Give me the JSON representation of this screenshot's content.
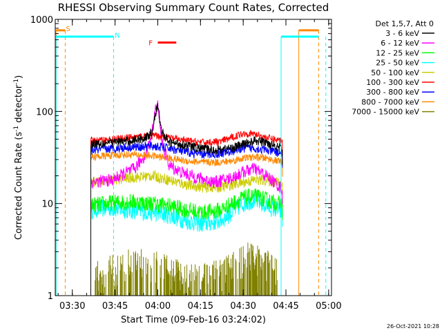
{
  "chart_data": {
    "type": "line",
    "title": "RHESSI Observing Summary Count Rates, Corrected",
    "xlabel": "Start Time (09-Feb-16 03:24:02)",
    "ylabel_parts": [
      "Corrected Count Rate (s",
      "-1",
      " detector",
      "-1",
      ")"
    ],
    "x_unit": "minutes after 03:24:02",
    "x_range": [
      0,
      97
    ],
    "x_ticks": [
      {
        "label": "03:30",
        "value": 6.0
      },
      {
        "label": "03:45",
        "value": 21.0
      },
      {
        "label": "04:00",
        "value": 36.0
      },
      {
        "label": "04:15",
        "value": 51.0
      },
      {
        "label": "04:30",
        "value": 66.0
      },
      {
        "label": "04:45",
        "value": 81.0
      },
      {
        "label": "05:00",
        "value": 96.0
      }
    ],
    "y_scale": "log",
    "y_range": [
      1,
      1000
    ],
    "y_ticks": [
      {
        "label": "1",
        "value": 1
      },
      {
        "label": "10",
        "value": 10
      },
      {
        "label": "100",
        "value": 100
      },
      {
        "label": "1000",
        "value": 1000
      }
    ],
    "legend_header": "Det 1,5,7, Att 0",
    "legend_position": "right",
    "data_start": 12.5,
    "data_end": 79.8,
    "series": [
      {
        "name": "3 - 6 keV",
        "color": "#000000",
        "x": [
          12.5,
          20,
          26,
          32,
          34,
          35,
          36,
          37,
          38,
          40,
          44,
          50,
          56,
          62,
          66,
          70,
          74,
          78,
          79.8
        ],
        "y": [
          45,
          46,
          48,
          52,
          60,
          90,
          115,
          70,
          55,
          46,
          44,
          40,
          38,
          40,
          44,
          48,
          46,
          42,
          38
        ]
      },
      {
        "name": "6 - 12 keV",
        "color": "#ff00ff",
        "x": [
          12.5,
          20,
          24,
          28,
          32,
          34,
          35,
          36,
          37,
          38,
          40,
          44,
          50,
          56,
          62,
          66,
          70,
          74,
          78,
          79.8
        ],
        "y": [
          17,
          18,
          21,
          24,
          35,
          60,
          100,
          118,
          60,
          40,
          26,
          22,
          19,
          17,
          19,
          22,
          24,
          20,
          16,
          14
        ]
      },
      {
        "name": "12 - 25 keV",
        "color": "#00ff00",
        "x": [
          12.5,
          18,
          26,
          34,
          40,
          46,
          52,
          58,
          62,
          66,
          70,
          74,
          78,
          79.8
        ],
        "y": [
          9.5,
          10,
          10.5,
          10,
          9.5,
          8.5,
          8,
          8.5,
          10,
          11.5,
          12,
          11,
          10,
          9.5
        ]
      },
      {
        "name": "25 - 50 keV",
        "color": "#00ffff",
        "x": [
          12.5,
          18,
          26,
          34,
          40,
          46,
          52,
          58,
          62,
          66,
          70,
          74,
          78,
          79.8
        ],
        "y": [
          8.5,
          9,
          8.5,
          8,
          7.5,
          6.5,
          6,
          6.5,
          8,
          10,
          11,
          9.5,
          8.5,
          8
        ]
      },
      {
        "name": "50 - 100 keV",
        "color": "#cccc00",
        "x": [
          12.5,
          18,
          26,
          34,
          40,
          46,
          52,
          58,
          62,
          66,
          70,
          74,
          78,
          79.8
        ],
        "y": [
          17,
          17.5,
          19,
          20,
          18,
          16,
          15,
          15,
          16,
          17,
          18,
          18,
          17,
          16.5
        ]
      },
      {
        "name": "100 - 300 keV",
        "color": "#ff0000",
        "x": [
          12.5,
          18,
          26,
          34,
          40,
          46,
          52,
          58,
          62,
          66,
          70,
          74,
          78,
          79.8
        ],
        "y": [
          48,
          49,
          52,
          55,
          52,
          48,
          46,
          47,
          52,
          58,
          57,
          52,
          49,
          48
        ]
      },
      {
        "name": "300 - 800 keV",
        "color": "#0000ff",
        "x": [
          12.5,
          18,
          26,
          34,
          40,
          46,
          52,
          58,
          62,
          66,
          70,
          74,
          78,
          79.8
        ],
        "y": [
          38,
          39,
          41,
          42,
          40,
          36,
          34,
          35,
          37,
          40,
          40,
          38,
          36,
          35
        ]
      },
      {
        "name": "800 - 7000 keV",
        "color": "#ff8800",
        "x": [
          12.5,
          18,
          26,
          34,
          40,
          46,
          52,
          58,
          62,
          66,
          70,
          74,
          78,
          79.8
        ],
        "y": [
          32,
          33,
          34,
          33,
          31,
          29,
          28,
          28,
          29,
          31,
          32,
          31,
          29,
          28
        ]
      },
      {
        "name": "7000 - 15000 keV",
        "color": "#808000",
        "x": [
          14,
          20,
          26,
          32,
          38,
          44,
          50,
          56,
          62,
          68,
          74,
          78
        ],
        "y": [
          1.3,
          1.5,
          1.8,
          1.9,
          1.6,
          1.3,
          1.2,
          1.3,
          1.6,
          2.1,
          1.8,
          1.4
        ]
      }
    ],
    "annotations": [
      {
        "label": "S",
        "x": 4.5,
        "y": 800,
        "color": "#ff8800"
      },
      {
        "label": "N",
        "x": 21.8,
        "y": 680,
        "color": "#00ffff"
      },
      {
        "label": "F",
        "x": 33.5,
        "y": 560,
        "color": "#ff0000"
      }
    ],
    "flag_bars": [
      {
        "label": "S",
        "color": "#ff8800",
        "y": 760,
        "segments": [
          [
            0.3,
            3.5
          ],
          [
            85.5,
            92.5
          ]
        ],
        "dashed_edges": [
          3.5,
          92.5
        ]
      },
      {
        "label": "N",
        "color": "#00ffff",
        "y": 650,
        "segments": [
          [
            0.3,
            20.5
          ],
          [
            79.3,
            92.5
          ]
        ],
        "dashed_edges": [
          20.5,
          95.0
        ]
      },
      {
        "label": "F",
        "color": "#ff0000",
        "y": 560,
        "segments": [
          [
            36.0,
            42.5
          ]
        ]
      }
    ],
    "timestamp": "26-Oct-2021 10:28"
  }
}
